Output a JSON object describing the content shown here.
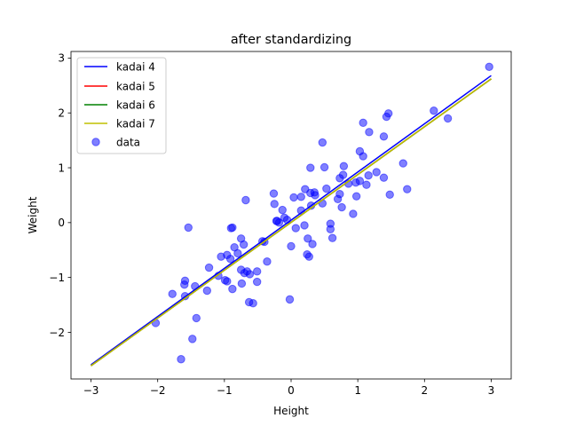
{
  "chart_data": {
    "type": "scatter",
    "title": "after standardizing",
    "xlabel": "Height",
    "ylabel": "Weight",
    "xlim": [
      -3.3,
      3.3
    ],
    "ylim": [
      -2.85,
      3.12
    ],
    "xticks": [
      -3,
      -2,
      -1,
      0,
      1,
      2,
      3
    ],
    "yticks": [
      -2,
      -1,
      0,
      1,
      2,
      3
    ],
    "xtick_labels": [
      "−3",
      "−2",
      "−1",
      "0",
      "1",
      "2",
      "3"
    ],
    "ytick_labels": [
      "−2",
      "−1",
      "0",
      "1",
      "2",
      "3"
    ],
    "grid": false,
    "legend_position": "top-left",
    "lines": [
      {
        "name": "kadai 4",
        "color": "#0000ff",
        "x": [
          -3,
          3
        ],
        "y": [
          -2.59,
          2.68
        ]
      },
      {
        "name": "kadai 5",
        "color": "#ff0000",
        "x": [
          -3,
          3
        ],
        "y": [
          -2.61,
          2.62
        ]
      },
      {
        "name": "kadai 6",
        "color": "#008000",
        "x": [
          -3,
          3
        ],
        "y": [
          -2.61,
          2.62
        ]
      },
      {
        "name": "kadai 7",
        "color": "#bfbf00",
        "x": [
          -3,
          3
        ],
        "y": [
          -2.61,
          2.62
        ]
      }
    ],
    "scatter": {
      "name": "data",
      "color": "#0000ff",
      "alpha": 0.5,
      "points": [
        [
          2.97,
          2.84
        ],
        [
          2.14,
          2.04
        ],
        [
          2.35,
          1.9
        ],
        [
          1.46,
          1.99
        ],
        [
          1.43,
          1.93
        ],
        [
          1.08,
          1.82
        ],
        [
          1.17,
          1.65
        ],
        [
          1.39,
          1.57
        ],
        [
          0.47,
          1.46
        ],
        [
          1.03,
          1.3
        ],
        [
          1.08,
          1.21
        ],
        [
          1.68,
          1.08
        ],
        [
          0.79,
          1.03
        ],
        [
          0.5,
          1.01
        ],
        [
          0.29,
          1.0
        ],
        [
          1.28,
          0.92
        ],
        [
          0.78,
          0.87
        ],
        [
          1.16,
          0.86
        ],
        [
          1.39,
          0.82
        ],
        [
          0.73,
          0.81
        ],
        [
          1.03,
          0.76
        ],
        [
          0.97,
          0.73
        ],
        [
          0.86,
          0.71
        ],
        [
          1.13,
          0.69
        ],
        [
          1.74,
          0.61
        ],
        [
          0.53,
          0.62
        ],
        [
          0.21,
          0.61
        ],
        [
          0.35,
          0.55
        ],
        [
          0.29,
          0.54
        ],
        [
          0.36,
          0.5
        ],
        [
          0.73,
          0.52
        ],
        [
          1.48,
          0.51
        ],
        [
          0.98,
          0.48
        ],
        [
          0.04,
          0.46
        ],
        [
          0.15,
          0.47
        ],
        [
          0.7,
          0.43
        ],
        [
          0.47,
          0.35
        ],
        [
          0.3,
          0.31
        ],
        [
          0.76,
          0.28
        ],
        [
          -0.26,
          0.53
        ],
        [
          -0.25,
          0.34
        ],
        [
          -0.13,
          0.23
        ],
        [
          0.15,
          0.22
        ],
        [
          0.93,
          0.16
        ],
        [
          -0.1,
          0.09
        ],
        [
          0.59,
          -0.02
        ],
        [
          -0.21,
          0.03
        ],
        [
          -0.22,
          0.03
        ],
        [
          -0.06,
          0.05
        ],
        [
          -0.18,
          0.0
        ],
        [
          0.07,
          -0.1
        ],
        [
          0.2,
          -0.05
        ],
        [
          -1.54,
          -0.09
        ],
        [
          -0.68,
          0.41
        ],
        [
          0.59,
          -0.12
        ],
        [
          -0.88,
          -0.09
        ],
        [
          -0.9,
          -0.1
        ],
        [
          0.25,
          -0.29
        ],
        [
          0.62,
          -0.28
        ],
        [
          -0.75,
          -0.29
        ],
        [
          -0.43,
          -0.34
        ],
        [
          -0.4,
          -0.35
        ],
        [
          0.32,
          -0.39
        ],
        [
          0.0,
          -0.43
        ],
        [
          -0.71,
          -0.4
        ],
        [
          -0.85,
          -0.45
        ],
        [
          0.24,
          -0.58
        ],
        [
          0.27,
          -0.62
        ],
        [
          -0.96,
          -0.59
        ],
        [
          -0.8,
          -0.56
        ],
        [
          -0.91,
          -0.66
        ],
        [
          -1.05,
          -0.62
        ],
        [
          -0.36,
          -0.71
        ],
        [
          -1.23,
          -0.82
        ],
        [
          -0.75,
          -0.86
        ],
        [
          -0.66,
          -0.89
        ],
        [
          -0.51,
          -0.89
        ],
        [
          -0.7,
          -0.92
        ],
        [
          -0.62,
          -0.94
        ],
        [
          -1.09,
          -0.97
        ],
        [
          -0.99,
          -1.05
        ],
        [
          -0.96,
          -1.07
        ],
        [
          -1.59,
          -1.06
        ],
        [
          -0.51,
          -1.08
        ],
        [
          -0.74,
          -1.11
        ],
        [
          -1.44,
          -1.16
        ],
        [
          -0.88,
          -1.21
        ],
        [
          -1.6,
          -1.13
        ],
        [
          -1.26,
          -1.24
        ],
        [
          -1.78,
          -1.3
        ],
        [
          -1.59,
          -1.34
        ],
        [
          -0.02,
          -1.4
        ],
        [
          -0.63,
          -1.45
        ],
        [
          -0.57,
          -1.47
        ],
        [
          -1.42,
          -1.74
        ],
        [
          -2.03,
          -1.83
        ],
        [
          -1.48,
          -2.12
        ],
        [
          -1.65,
          -2.49
        ]
      ]
    }
  }
}
